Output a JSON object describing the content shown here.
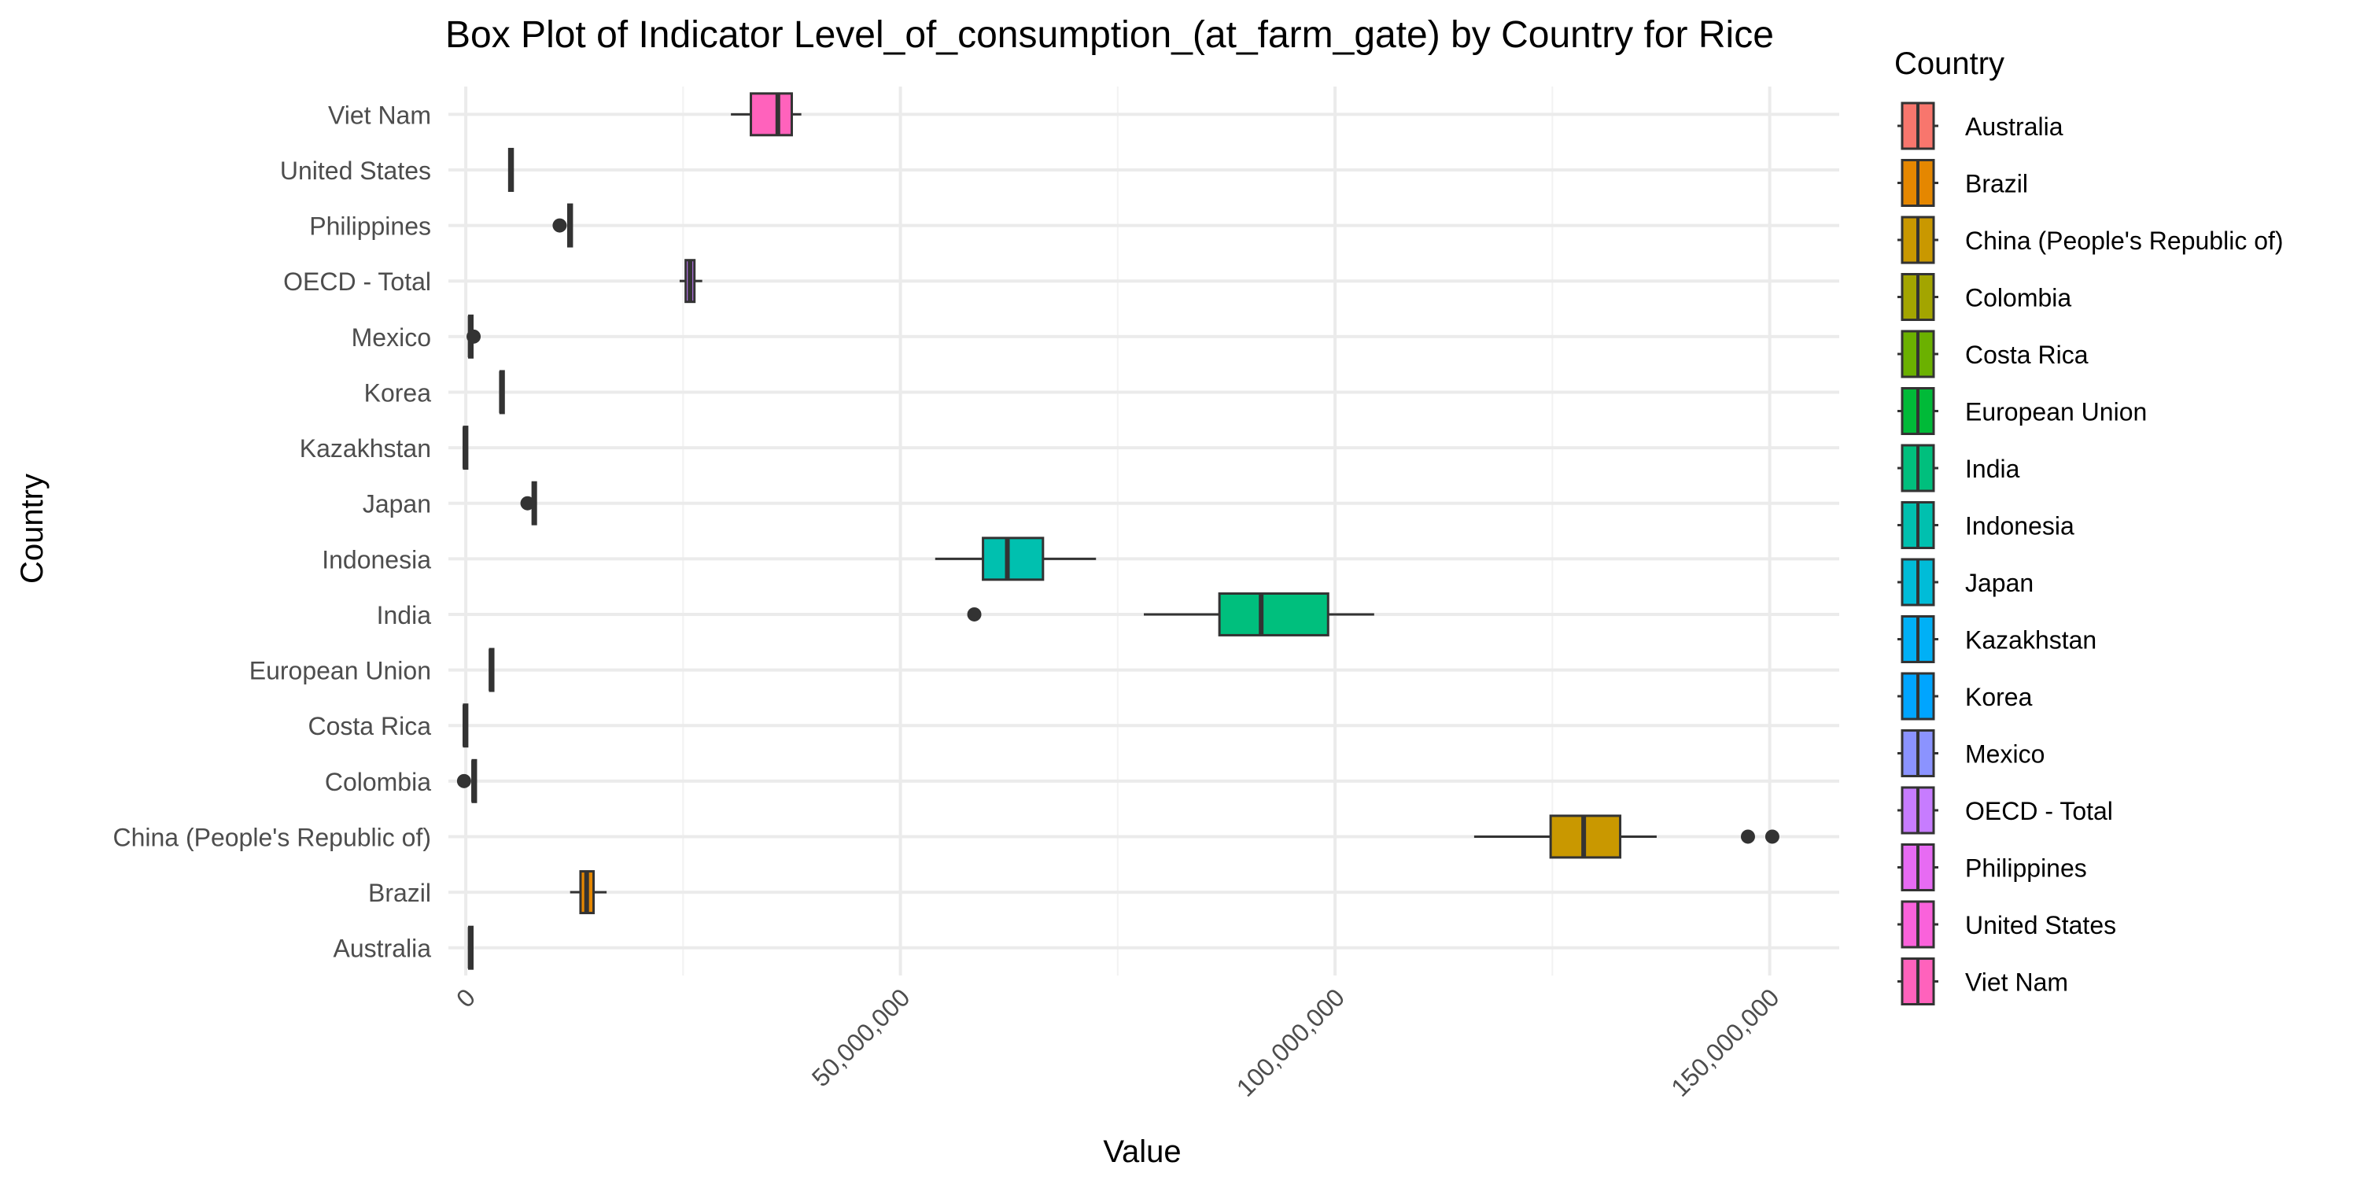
{
  "chart_data": {
    "type": "boxplot",
    "orientation": "horizontal",
    "title": "Box Plot of Indicator Level_of_consumption_(at_farm_gate) by Country for Rice",
    "xlabel": "Value",
    "ylabel": "Country",
    "xlim": [
      -2000000,
      158000000
    ],
    "x_ticks": [
      0,
      50000000,
      100000000,
      150000000
    ],
    "x_tick_labels": [
      "0",
      "50,000,000",
      "100,000,000",
      "150,000,000"
    ],
    "grid": true,
    "legend": {
      "title": "Country",
      "position": "right"
    },
    "categories": [
      "Australia",
      "Brazil",
      "China (People's Republic of)",
      "Colombia",
      "Costa Rica",
      "European Union",
      "India",
      "Indonesia",
      "Japan",
      "Kazakhstan",
      "Korea",
      "Mexico",
      "OECD - Total",
      "Philippines",
      "United States",
      "Viet Nam"
    ],
    "colors": [
      "#F8766D",
      "#E58700",
      "#C99800",
      "#A3A500",
      "#6BB100",
      "#00BA38",
      "#00BF7D",
      "#00C0AF",
      "#00BCD8",
      "#00B0F6",
      "#00A5FF",
      "#8B93FF",
      "#C77CFF",
      "#E76BF3",
      "#FA62DB",
      "#FF62BC"
    ],
    "boxes": [
      {
        "whisker_low": 300000,
        "q1": 400000,
        "median": 500000,
        "q3": 600000,
        "whisker_high": 700000,
        "outliers": []
      },
      {
        "whisker_low": 12000000,
        "q1": 13200000,
        "median": 13900000,
        "q3": 14700000,
        "whisker_high": 16200000,
        "outliers": []
      },
      {
        "whisker_low": 116000000,
        "q1": 124800000,
        "median": 128600000,
        "q3": 132800000,
        "whisker_high": 137000000,
        "outliers": [
          147500000,
          150300000
        ]
      },
      {
        "whisker_low": 700000,
        "q1": 800000,
        "median": 900000,
        "q3": 1000000,
        "whisker_high": 1100000,
        "outliers": [
          -200000
        ]
      },
      {
        "whisker_low": -300000,
        "q1": -200000,
        "median": -100000,
        "q3": 0,
        "whisker_high": 100000,
        "outliers": []
      },
      {
        "whisker_low": 2700000,
        "q1": 2800000,
        "median": 2900000,
        "q3": 3000000,
        "whisker_high": 3100000,
        "outliers": []
      },
      {
        "whisker_low": 78000000,
        "q1": 86700000,
        "median": 91500000,
        "q3": 99200000,
        "whisker_high": 104500000,
        "outliers": [
          58500000
        ]
      },
      {
        "whisker_low": 54000000,
        "q1": 59500000,
        "median": 62300000,
        "q3": 66400000,
        "whisker_high": 72500000,
        "outliers": []
      },
      {
        "whisker_low": 7600000,
        "q1": 7700000,
        "median": 7850000,
        "q3": 8000000,
        "whisker_high": 8100000,
        "outliers": [
          7100000
        ]
      },
      {
        "whisker_low": -300000,
        "q1": -200000,
        "median": -100000,
        "q3": 0,
        "whisker_high": 100000,
        "outliers": []
      },
      {
        "whisker_low": 3900000,
        "q1": 4000000,
        "median": 4100000,
        "q3": 4200000,
        "whisker_high": 4300000,
        "outliers": []
      },
      {
        "whisker_low": 300000,
        "q1": 400000,
        "median": 500000,
        "q3": 600000,
        "whisker_high": 700000,
        "outliers": [
          900000
        ]
      },
      {
        "whisker_low": 24600000,
        "q1": 25300000,
        "median": 25800000,
        "q3": 26300000,
        "whisker_high": 27200000,
        "outliers": []
      },
      {
        "whisker_low": 11700000,
        "q1": 11800000,
        "median": 12000000,
        "q3": 12200000,
        "whisker_high": 12300000,
        "outliers": [
          10800000
        ]
      },
      {
        "whisker_low": 4900000,
        "q1": 5000000,
        "median": 5200000,
        "q3": 5400000,
        "whisker_high": 5500000,
        "outliers": []
      },
      {
        "whisker_low": 30500000,
        "q1": 32800000,
        "median": 35900000,
        "q3": 37500000,
        "whisker_high": 38600000,
        "outliers": []
      }
    ]
  }
}
